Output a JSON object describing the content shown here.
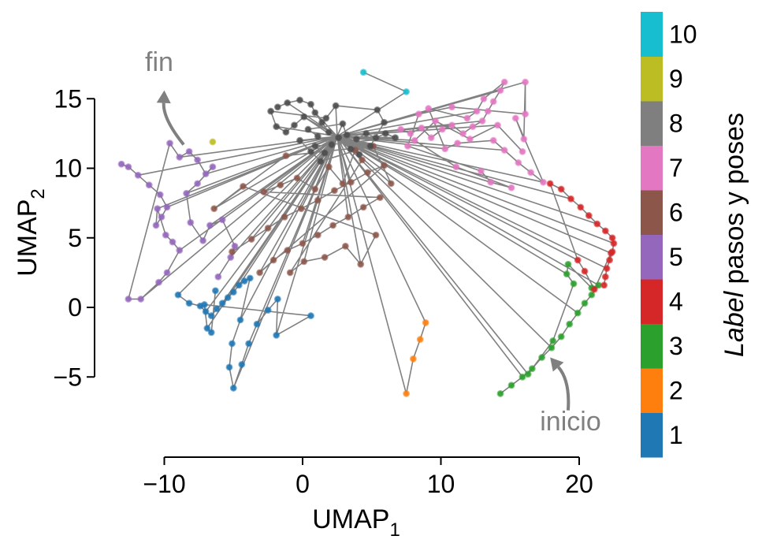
{
  "chart_data": {
    "type": "scatter",
    "title": "",
    "xlabel": "UMAP",
    "xlabel_sub": "1",
    "ylabel": "UMAP",
    "ylabel_sub": "2",
    "xlim": [
      -15,
      22.5
    ],
    "ylim": [
      -10,
      17.5
    ],
    "xticks": [
      -10,
      0,
      10,
      20
    ],
    "xtick_labels": [
      "−10",
      "0",
      "10",
      "20"
    ],
    "yticks": [
      15,
      10,
      5,
      0,
      -5
    ],
    "ytick_labels": [
      "15",
      "10",
      "5",
      "0",
      "−5"
    ],
    "grid": false,
    "line_color": "#7a7a7a",
    "series": [
      {
        "color": "#1f77b4",
        "points": [
          [
            -9,
            0.9
          ],
          [
            -8.2,
            0.3
          ],
          [
            -7.4,
            0.1
          ],
          [
            -7,
            -0.3
          ],
          [
            -6.6,
            -0.6
          ],
          [
            -6.2,
            -0.1
          ],
          [
            -5.8,
            0.3
          ],
          [
            -5.4,
            0.7
          ],
          [
            -5,
            1.1
          ],
          [
            -4.6,
            1.6
          ],
          [
            -4.2,
            1.9
          ],
          [
            -3.8,
            2.1
          ],
          [
            -4.5,
            -0.9
          ],
          [
            -5.1,
            -2.6
          ],
          [
            -5.3,
            -4.3
          ],
          [
            -5.0,
            -5.8
          ],
          [
            -4.4,
            -4.1
          ],
          [
            -3.9,
            -2.6
          ],
          [
            -3.3,
            -1.2
          ],
          [
            -2.5,
            -0.2
          ],
          [
            -1.8,
            0.6
          ],
          [
            -1.9,
            -2.0
          ],
          [
            0.6,
            -0.6
          ],
          [
            -7.1,
            0.2
          ],
          [
            -6.9,
            -1.5
          ],
          [
            -6.6,
            -1.8
          ],
          [
            -6.3,
            1.2
          ]
        ]
      },
      {
        "color": "#ff7f0e",
        "points": [
          [
            7.5,
            -6.2
          ],
          [
            8,
            -3.7
          ],
          [
            8.5,
            -2.3
          ],
          [
            8.9,
            -1.1
          ]
        ]
      },
      {
        "color": "#2ca02c",
        "points": [
          [
            14.3,
            -6.2
          ],
          [
            15.1,
            -5.6
          ],
          [
            15.9,
            -5.0
          ],
          [
            16.6,
            -4.4
          ],
          [
            17.3,
            -3.6
          ],
          [
            18.0,
            -2.9
          ],
          [
            18.7,
            -2.1
          ],
          [
            19.3,
            -1.2
          ],
          [
            19.9,
            -0.4
          ],
          [
            20.4,
            0.3
          ],
          [
            20.9,
            0.9
          ],
          [
            21.4,
            1.6
          ],
          [
            20.9,
            1.4
          ],
          [
            19.2,
            3.1
          ],
          [
            19.1,
            2.4
          ],
          [
            19.6,
            1.7
          ],
          [
            18.1,
            -2.4
          ],
          [
            16.3,
            -4.8
          ]
        ]
      },
      {
        "color": "#d62728",
        "points": [
          [
            21.8,
            1.6
          ],
          [
            21.9,
            2.2
          ],
          [
            22.0,
            2.8
          ],
          [
            22.2,
            3.4
          ],
          [
            22.4,
            4.0
          ],
          [
            22.5,
            4.6
          ],
          [
            22.4,
            5.0
          ],
          [
            21.9,
            5.5
          ],
          [
            21.3,
            6.0
          ],
          [
            20.7,
            6.6
          ],
          [
            20.1,
            7.2
          ],
          [
            19.4,
            7.8
          ],
          [
            18.7,
            8.5
          ],
          [
            17.9,
            8.9
          ],
          [
            19.9,
            3.4
          ],
          [
            20.4,
            2.6
          ],
          [
            21.1,
            1.3
          ],
          [
            22.3,
            3.9
          ]
        ]
      },
      {
        "color": "#9467bd",
        "points": [
          [
            -13.1,
            10.3
          ],
          [
            -12.6,
            10.1
          ],
          [
            -11.9,
            9.5
          ],
          [
            -11.1,
            8.8
          ],
          [
            -10.3,
            8.1
          ],
          [
            -9.8,
            7.2
          ],
          [
            -10.2,
            6.5
          ],
          [
            -10.6,
            5.9
          ],
          [
            -10.5,
            7.1
          ],
          [
            -9.9,
            5.2
          ],
          [
            -9.4,
            4.7
          ],
          [
            -8.9,
            4.1
          ],
          [
            -9.8,
            2.5
          ],
          [
            -10.4,
            1.8
          ],
          [
            -11.7,
            0.6
          ],
          [
            -12.6,
            0.6
          ],
          [
            -9.6,
            11.8
          ],
          [
            -8.9,
            10.8
          ],
          [
            -8.2,
            11.2
          ],
          [
            -7.6,
            10.6
          ],
          [
            -7.0,
            9.6
          ],
          [
            -6.5,
            10.1
          ],
          [
            -7.6,
            8.9
          ],
          [
            -8.4,
            8.2
          ],
          [
            -8.1,
            6.1
          ],
          [
            -7.2,
            4.8
          ],
          [
            -6.7,
            5.9
          ],
          [
            -5.8,
            6.3
          ],
          [
            -4.9,
            4.4
          ],
          [
            -5.2,
            3.6
          ],
          [
            -6.1,
            2.2
          ]
        ]
      },
      {
        "color": "#8c564b",
        "points": [
          [
            -5.1,
            4.0
          ],
          [
            -3.7,
            4.9
          ],
          [
            -2.5,
            5.7
          ],
          [
            -1.3,
            6.5
          ],
          [
            -0.1,
            7.1
          ],
          [
            1.1,
            7.7
          ],
          [
            2.3,
            8.4
          ],
          [
            3.5,
            9.0
          ],
          [
            4.7,
            9.7
          ],
          [
            5.9,
            10.2
          ],
          [
            -3.1,
            2.5
          ],
          [
            -2.1,
            3.4
          ],
          [
            -1.1,
            4.1
          ],
          [
            0.0,
            4.6
          ],
          [
            1.1,
            5.2
          ],
          [
            2.2,
            5.9
          ],
          [
            3.3,
            6.5
          ],
          [
            4.4,
            7.2
          ],
          [
            5.6,
            7.9
          ],
          [
            -2.8,
            8.3
          ],
          [
            -1.6,
            8.8
          ],
          [
            -0.4,
            9.3
          ],
          [
            0.9,
            8.5
          ],
          [
            1.9,
            10.1
          ],
          [
            2.9,
            8.9
          ],
          [
            3.8,
            11.3
          ],
          [
            4.3,
            10.6
          ],
          [
            -0.9,
            2.5
          ],
          [
            0.1,
            3.3
          ],
          [
            1.6,
            3.6
          ],
          [
            3.1,
            4.4
          ],
          [
            4.2,
            3.1
          ],
          [
            5.3,
            5.2
          ],
          [
            -4.3,
            8.7
          ],
          [
            -6.4,
            7.1
          ],
          [
            -1.2,
            10.9
          ],
          [
            5.1,
            11.6
          ],
          [
            6.4,
            8.9
          ]
        ]
      },
      {
        "color": "#e377c2",
        "points": [
          [
            7.1,
            12.8
          ],
          [
            7.8,
            12.5
          ],
          [
            8.6,
            12.9
          ],
          [
            9.3,
            12.2
          ],
          [
            10.1,
            12.8
          ],
          [
            10.8,
            13.1
          ],
          [
            11.6,
            12.5
          ],
          [
            12.3,
            13.0
          ],
          [
            13.0,
            13.4
          ],
          [
            13.4,
            14.1
          ],
          [
            13.8,
            14.8
          ],
          [
            14.3,
            15.6
          ],
          [
            14.6,
            16.2
          ],
          [
            13.1,
            15.0
          ],
          [
            12.6,
            14.1
          ],
          [
            11.9,
            13.6
          ],
          [
            9.1,
            14.3
          ],
          [
            10.3,
            11.4
          ],
          [
            11.2,
            11.8
          ],
          [
            13.8,
            12.0
          ],
          [
            14.6,
            11.3
          ],
          [
            15.6,
            10.4
          ],
          [
            16.5,
            9.7
          ],
          [
            17.4,
            9.0
          ],
          [
            15.4,
            13.6
          ],
          [
            16.0,
            12.1
          ],
          [
            16.1,
            16.2
          ],
          [
            16.1,
            13.9
          ],
          [
            10.8,
            14.4
          ],
          [
            8.4,
            13.9
          ],
          [
            7.6,
            11.6
          ],
          [
            12.9,
            9.8
          ],
          [
            13.6,
            9.0
          ],
          [
            15.1,
            8.6
          ],
          [
            11.1,
            10.1
          ],
          [
            8.1,
            12.0
          ],
          [
            9.6,
            13.4
          ],
          [
            12.1,
            12.1
          ],
          [
            14.1,
            13.1
          ],
          [
            15.9,
            11.2
          ]
        ]
      },
      {
        "color": "#4d4d4d",
        "points": [
          [
            -1.8,
            14.4
          ],
          [
            -1.1,
            14.7
          ],
          [
            -0.2,
            14.9
          ],
          [
            0.6,
            14.6
          ],
          [
            0.9,
            14.0
          ],
          [
            1.4,
            13.3
          ],
          [
            1.9,
            12.6
          ],
          [
            2.6,
            12.2
          ],
          [
            3.2,
            12.4
          ],
          [
            3.9,
            12.1
          ],
          [
            4.6,
            12.5
          ],
          [
            5.3,
            12.2
          ],
          [
            6.0,
            12.5
          ],
          [
            6.7,
            12.2
          ],
          [
            0.9,
            11.6
          ],
          [
            1.6,
            11.1
          ],
          [
            2.1,
            11.7
          ],
          [
            1.1,
            12.3
          ],
          [
            0.4,
            12.8
          ],
          [
            2.9,
            13.2
          ],
          [
            3.5,
            11.4
          ],
          [
            4.1,
            11.0
          ],
          [
            0.1,
            13.7
          ],
          [
            -0.6,
            13.1
          ],
          [
            -1.2,
            12.6
          ],
          [
            -1.9,
            13.0
          ],
          [
            -2.3,
            14.1
          ],
          [
            1.7,
            13.6
          ],
          [
            2.4,
            14.5
          ],
          [
            5.4,
            14.2
          ],
          [
            5.9,
            13.3
          ],
          [
            4.9,
            11.6
          ],
          [
            1.3,
            10.5
          ],
          [
            0.6,
            11.2
          ],
          [
            -0.2,
            12.0
          ]
        ]
      },
      {
        "color": "#bcbd22",
        "points": [
          [
            -6.5,
            11.9
          ]
        ]
      },
      {
        "color": "#17becf",
        "points": [
          [
            4.4,
            16.9
          ],
          [
            7.5,
            15.5
          ]
        ]
      }
    ],
    "colorbar": {
      "label_italic": "Label",
      "label_rest": " pasos y poses",
      "ticks": [
        "1",
        "2",
        "3",
        "4",
        "5",
        "6",
        "7",
        "8",
        "9",
        "10"
      ],
      "colors": [
        "#1f77b4",
        "#ff7f0e",
        "#2ca02c",
        "#d62728",
        "#9467bd",
        "#8c564b",
        "#e377c2",
        "#7f7f7f",
        "#bcbd22",
        "#17becf"
      ]
    },
    "annotations": [
      {
        "text": "fin",
        "color": "#808080",
        "arrow_tip": [
          -10.0,
          15.6
        ],
        "arrow_tail": [
          -8.6,
          11.7
        ]
      },
      {
        "text": "inicio",
        "color": "#808080",
        "arrow_tip": [
          17.9,
          -3.6
        ],
        "arrow_tail": [
          19.2,
          -7.4
        ]
      }
    ]
  }
}
